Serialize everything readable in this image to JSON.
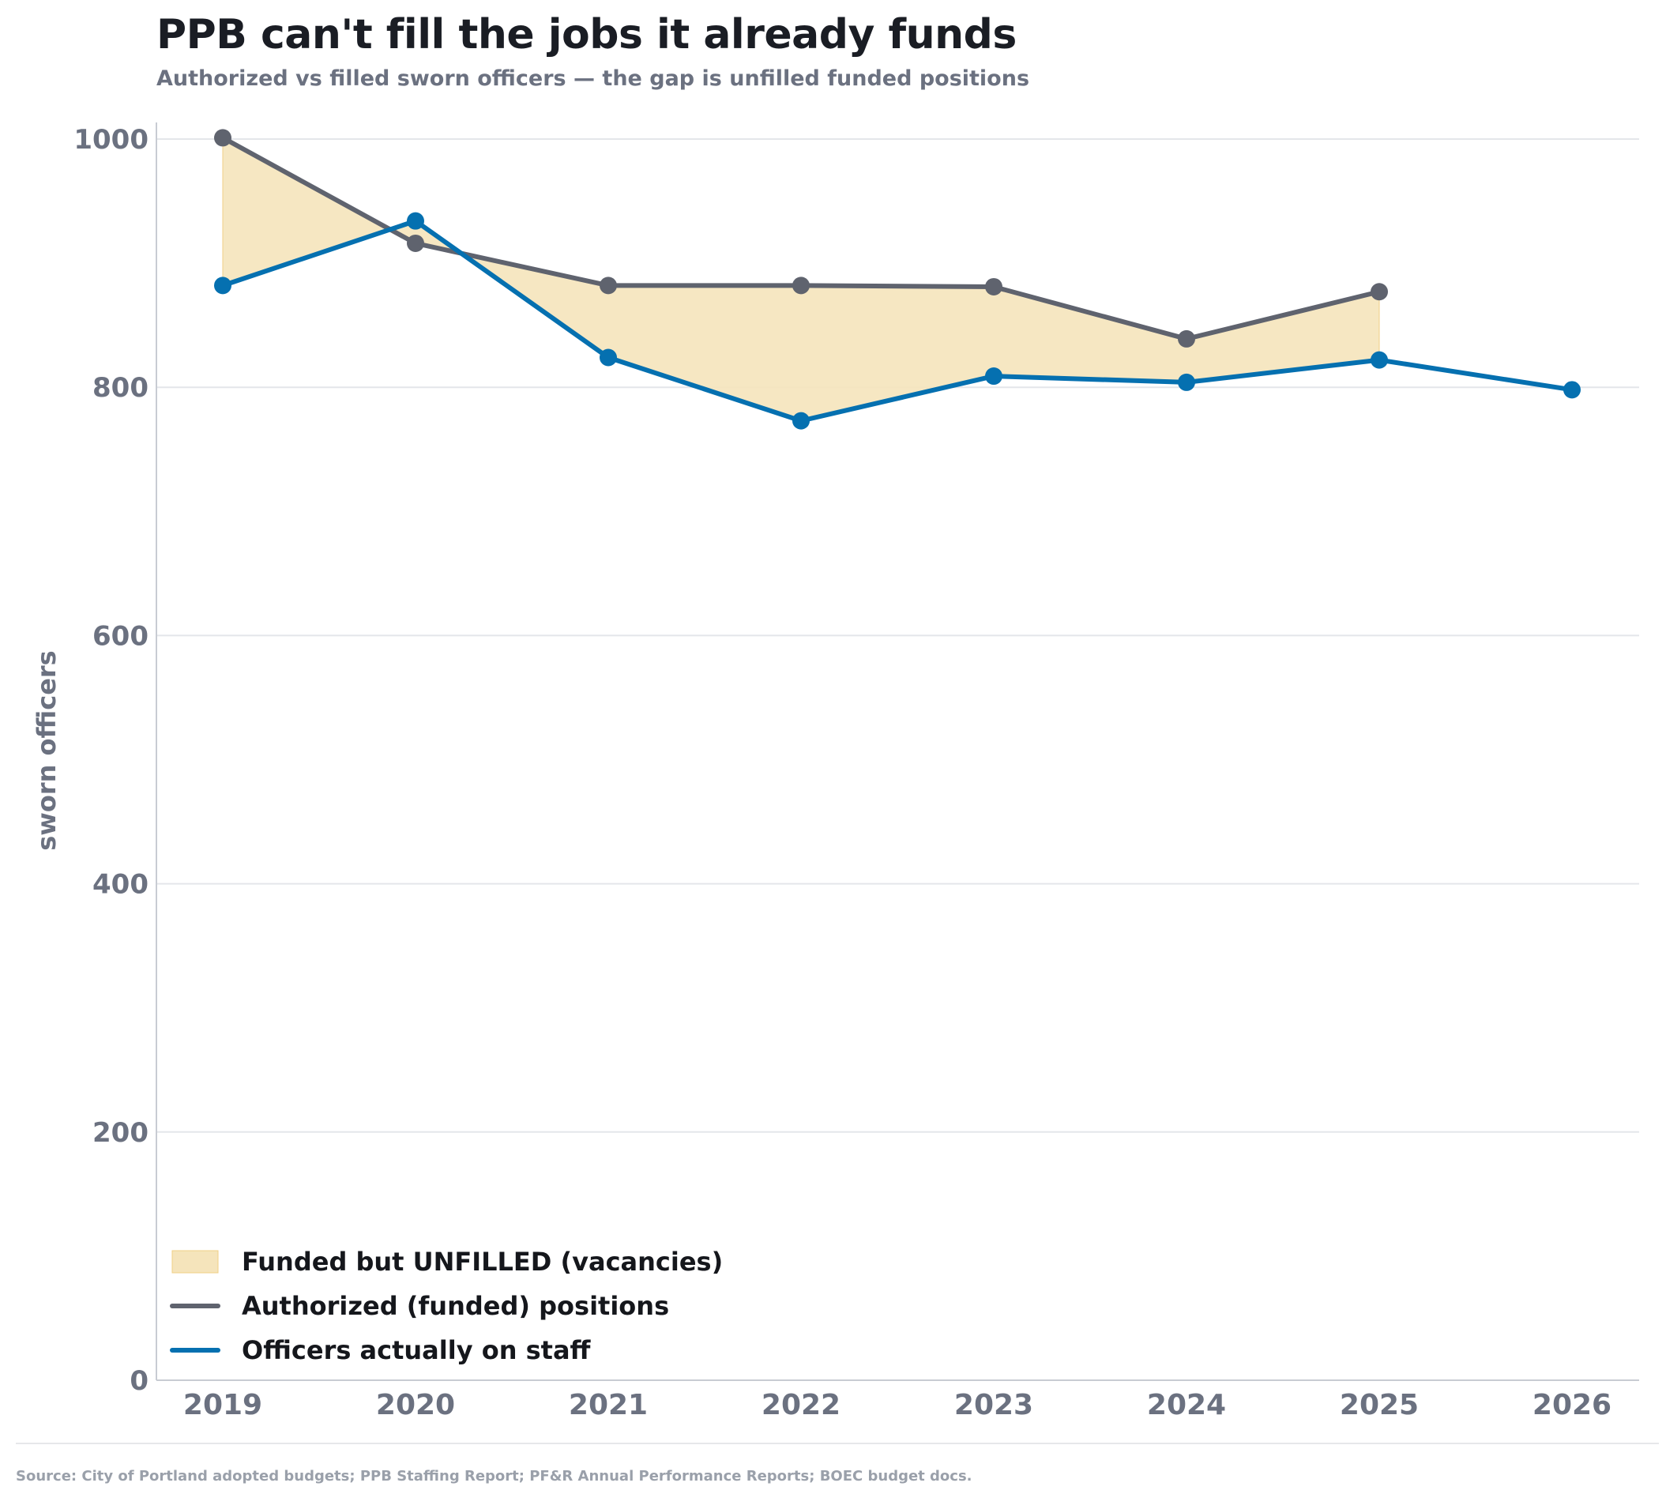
{
  "header": {
    "title": "PPB can't fill the jobs it already funds",
    "subtitle": "Authorized vs filled sworn officers — the gap is unfilled funded positions"
  },
  "footer": {
    "source": "Source: City of Portland adopted budgets; PPB Staffing Report; PF&R Annual Performance Reports; BOEC budget docs."
  },
  "chart_data": {
    "type": "line",
    "title": "PPB can't fill the jobs it already funds",
    "subtitle": "Authorized vs filled sworn officers — the gap is unfilled funded positions",
    "xlabel": "",
    "ylabel": "sworn officers",
    "x": [
      2019,
      2020,
      2021,
      2022,
      2023,
      2024,
      2025,
      2026
    ],
    "ylim": [
      0,
      1000
    ],
    "yticks": [
      0,
      200,
      400,
      600,
      800,
      1000
    ],
    "grid": "horizontal",
    "legend_position": "bottom-left",
    "series": [
      {
        "name": "Authorized (funded) positions",
        "color": "#5f636e",
        "values": [
          1001,
          916,
          882,
          882,
          881,
          839,
          877,
          null
        ]
      },
      {
        "name": "Officers actually on staff",
        "color": "#0570b0",
        "values": [
          882,
          934,
          824,
          773,
          809,
          804,
          822,
          798
        ]
      }
    ],
    "fill_between": {
      "name": "Funded but UNFILLED (vacancies)",
      "color": "#f5e4bb",
      "between": [
        "Authorized (funded) positions",
        "Officers actually on staff"
      ],
      "x_range": [
        2019,
        2025
      ]
    }
  }
}
